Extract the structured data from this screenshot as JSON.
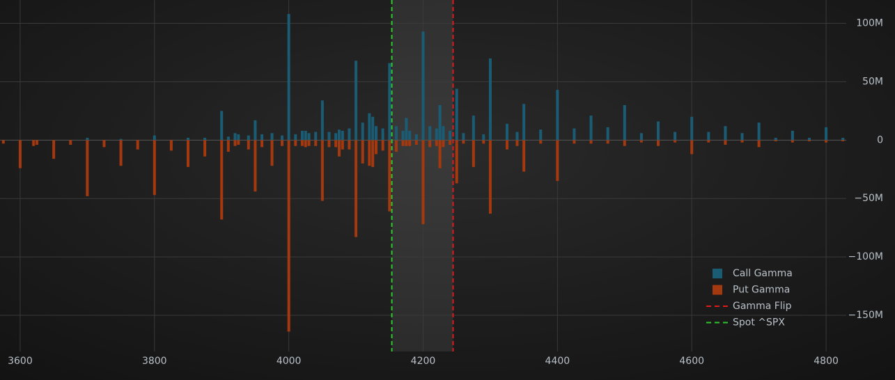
{
  "chart_data": {
    "type": "bar",
    "x": [
      3575,
      3600,
      3620,
      3625,
      3650,
      3675,
      3700,
      3725,
      3750,
      3775,
      3800,
      3825,
      3850,
      3875,
      3900,
      3910,
      3920,
      3925,
      3940,
      3950,
      3960,
      3975,
      3990,
      4000,
      4010,
      4020,
      4025,
      4030,
      4040,
      4050,
      4060,
      4070,
      4075,
      4080,
      4090,
      4100,
      4110,
      4120,
      4125,
      4130,
      4140,
      4150,
      4160,
      4170,
      4175,
      4180,
      4190,
      4200,
      4210,
      4220,
      4225,
      4230,
      4240,
      4250,
      4260,
      4275,
      4290,
      4300,
      4325,
      4340,
      4350,
      4375,
      4400,
      4425,
      4450,
      4475,
      4500,
      4525,
      4550,
      4575,
      4600,
      4625,
      4650,
      4675,
      4700,
      4725,
      4750,
      4775,
      4800,
      4825
    ],
    "series": [
      {
        "name": "Call Gamma",
        "color": "#1b5c75",
        "values": [
          0,
          0,
          0,
          0,
          0,
          0,
          2000000.0,
          0,
          1000000.0,
          0,
          4000000.0,
          0,
          2000000.0,
          2000000.0,
          25000000.0,
          3000000.0,
          6000000.0,
          5000000.0,
          4000000.0,
          17000000.0,
          5000000.0,
          6000000.0,
          4000000.0,
          108000000.0,
          5000000.0,
          8000000.0,
          8000000.0,
          6000000.0,
          7000000.0,
          34000000.0,
          7000000.0,
          6000000.0,
          9000000.0,
          8000000.0,
          10000000.0,
          68000000.0,
          15000000.0,
          23000000.0,
          20000000.0,
          12000000.0,
          10000000.0,
          66000000.0,
          12000000.0,
          8000000.0,
          19000000.0,
          8000000.0,
          5000000.0,
          93000000.0,
          12000000.0,
          10000000.0,
          30000000.0,
          12000000.0,
          8000000.0,
          44000000.0,
          6000000.0,
          21000000.0,
          5000000.0,
          70000000.0,
          14000000.0,
          7000000.0,
          31000000.0,
          9000000.0,
          43000000.0,
          10000000.0,
          21000000.0,
          11000000.0,
          30000000.0,
          6000000.0,
          16000000.0,
          7000000.0,
          20000000.0,
          7000000.0,
          12000000.0,
          6000000.0,
          15000000.0,
          2000000.0,
          8000000.0,
          2000000.0,
          11000000.0,
          2000000.0
        ]
      },
      {
        "name": "Put Gamma",
        "color": "#a4390f",
        "values": [
          -3000000.0,
          -24000000.0,
          -5000000.0,
          -4000000.0,
          -16000000.0,
          -4000000.0,
          -48000000.0,
          -6000000.0,
          -22000000.0,
          -8000000.0,
          -47000000.0,
          -9000000.0,
          -23000000.0,
          -14000000.0,
          -68000000.0,
          -10000000.0,
          -5000000.0,
          -4000000.0,
          -8000000.0,
          -44000000.0,
          -6000000.0,
          -22000000.0,
          -5000000.0,
          -164000000.0,
          -5000000.0,
          -5000000.0,
          -6000000.0,
          -5000000.0,
          -5000000.0,
          -52000000.0,
          -6000000.0,
          -6000000.0,
          -14000000.0,
          -8000000.0,
          -8000000.0,
          -83000000.0,
          -20000000.0,
          -22000000.0,
          -23000000.0,
          -12000000.0,
          -9000000.0,
          -61000000.0,
          -10000000.0,
          -5000000.0,
          -5000000.0,
          -5000000.0,
          -4000000.0,
          -72000000.0,
          -6000000.0,
          -5000000.0,
          -24000000.0,
          -6000000.0,
          -4000000.0,
          -37000000.0,
          -3000000.0,
          -23000000.0,
          -3000000.0,
          -63000000.0,
          -8000000.0,
          -5000000.0,
          -27000000.0,
          -3000000.0,
          -35000000.0,
          -3000000.0,
          -3000000.0,
          -3000000.0,
          -5000000.0,
          -2000000.0,
          -5000000.0,
          -2000000.0,
          -12000000.0,
          -2000000.0,
          -4000000.0,
          -2000000.0,
          -6000000.0,
          -1000000.0,
          -2000000.0,
          -1000000.0,
          -2000000.0,
          -1000000.0
        ]
      }
    ],
    "vlines": [
      {
        "name": "Gamma Flip",
        "value": 4244.6,
        "color": "#e01a1a"
      },
      {
        "name": "Spot ^SPX",
        "value": 4153.4,
        "color": "#2ec82e"
      }
    ],
    "xlim": [
      3570,
      4830
    ],
    "xticks": [
      3600,
      3800,
      4000,
      4200,
      4400,
      4600,
      4800
    ],
    "ylim": [
      -181000000,
      120000000
    ],
    "yticks": [
      {
        "value": -150000000,
        "label": "−150M"
      },
      {
        "value": -100000000,
        "label": "−100M"
      },
      {
        "value": -50000000,
        "label": "−50M"
      },
      0,
      {
        "value": 50000000,
        "label": "50M"
      },
      {
        "value": 100000000,
        "label": "100M"
      }
    ],
    "grid": true,
    "legend": "lower-right"
  }
}
